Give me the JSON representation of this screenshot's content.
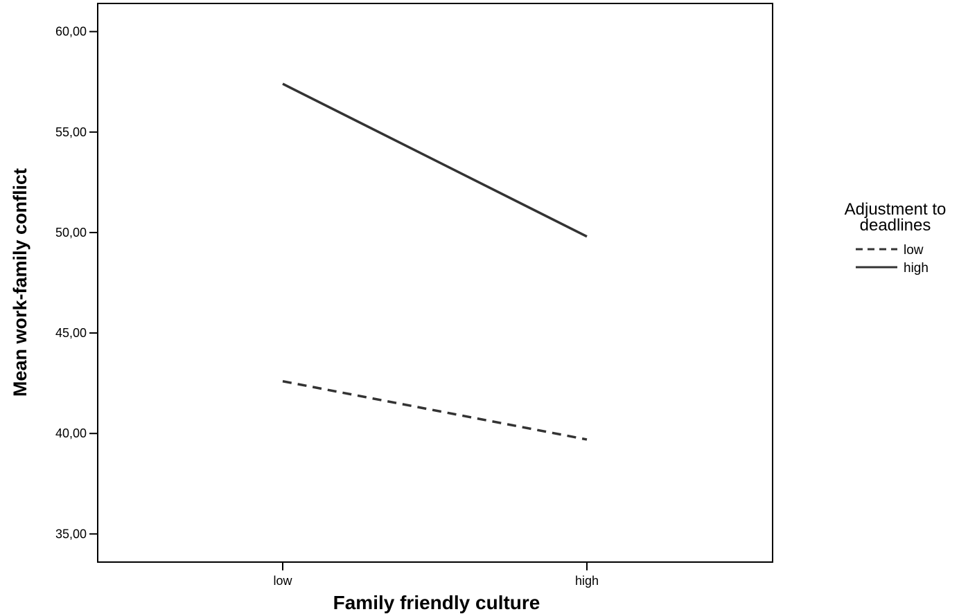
{
  "chart_data": {
    "type": "line",
    "xlabel": "Family friendly culture",
    "ylabel": "Mean work-family conflict",
    "categories": [
      "low",
      "high"
    ],
    "ylim": [
      33.6,
      61.4
    ],
    "yticks": [
      "35,00",
      "40,00",
      "45,00",
      "50,00",
      "55,00",
      "60,00"
    ],
    "ytick_values": [
      35,
      40,
      45,
      50,
      55,
      60
    ],
    "grid": false,
    "legend": {
      "title_line1": "Adjustment to",
      "title_line2": "deadlines",
      "placement": "right"
    },
    "series": [
      {
        "name": "low",
        "style": "dashed",
        "values": [
          42.6,
          39.7
        ]
      },
      {
        "name": "high",
        "style": "solid",
        "values": [
          57.4,
          49.8
        ]
      }
    ],
    "colors": {
      "line": "#333333",
      "axis": "#000000",
      "background": "#ffffff"
    }
  }
}
